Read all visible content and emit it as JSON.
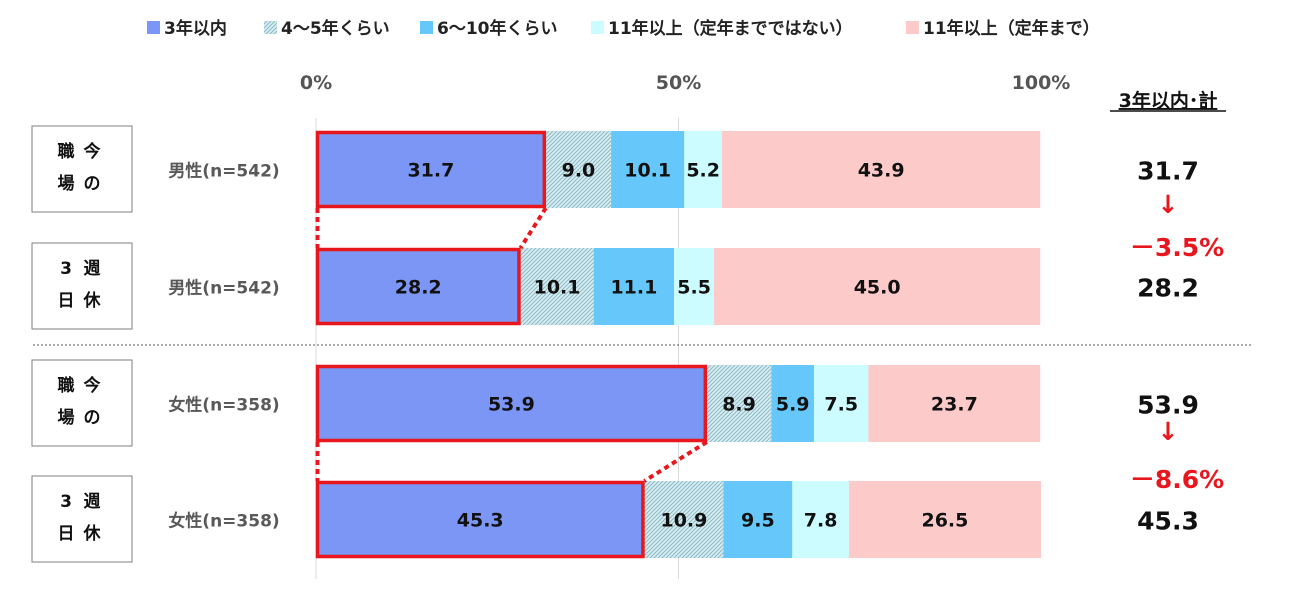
{
  "chart_data": {
    "type": "bar",
    "orientation": "horizontal-stacked-100",
    "legend": [
      "3年以内",
      "4〜5年くらい",
      "6〜10年くらい",
      "11年以上（定年までではない）",
      "11年以上（定年まで）"
    ],
    "xticks": [
      "0%",
      "50%",
      "100%"
    ],
    "xlim": [
      0,
      100
    ],
    "total_header": "3年以内･計",
    "colors": [
      "#7b96f5",
      "#bfe2e9",
      "#66c8fa",
      "#ccfcff",
      "#fdcaca"
    ],
    "highlight_color": "#e8171d",
    "rows": [
      {
        "box": [
          "今",
          "職",
          "の",
          "場"
        ],
        "group": "男性(n=542)",
        "values": [
          31.7,
          9.0,
          10.1,
          5.2,
          43.9
        ],
        "labels": [
          "31.7",
          "9.0",
          "10.1",
          "5.2",
          "43.9"
        ],
        "total": "31.7"
      },
      {
        "box": [
          "週",
          "3",
          "休",
          "日"
        ],
        "group": "男性(n=542)",
        "values": [
          28.2,
          10.1,
          11.1,
          5.5,
          45.0
        ],
        "labels": [
          "28.2",
          "10.1",
          "11.1",
          "5.5",
          "45.0"
        ],
        "total": "28.2"
      },
      {
        "box": [
          "今",
          "職",
          "の",
          "場"
        ],
        "group": "女性(n=358)",
        "values": [
          53.9,
          8.9,
          5.9,
          7.5,
          23.7
        ],
        "labels": [
          "53.9",
          "8.9",
          "5.9",
          "7.5",
          "23.7"
        ],
        "total": "53.9"
      },
      {
        "box": [
          "週",
          "3",
          "休",
          "日"
        ],
        "group": "女性(n=358)",
        "values": [
          45.3,
          10.9,
          9.5,
          7.8,
          26.5
        ],
        "labels": [
          "45.3",
          "10.9",
          "9.5",
          "7.8",
          "26.5"
        ],
        "total": "45.3"
      }
    ],
    "differences": [
      {
        "arrow": "↓",
        "text": "－3.5%"
      },
      {
        "arrow": "↓",
        "text": "－8.6%"
      }
    ]
  }
}
